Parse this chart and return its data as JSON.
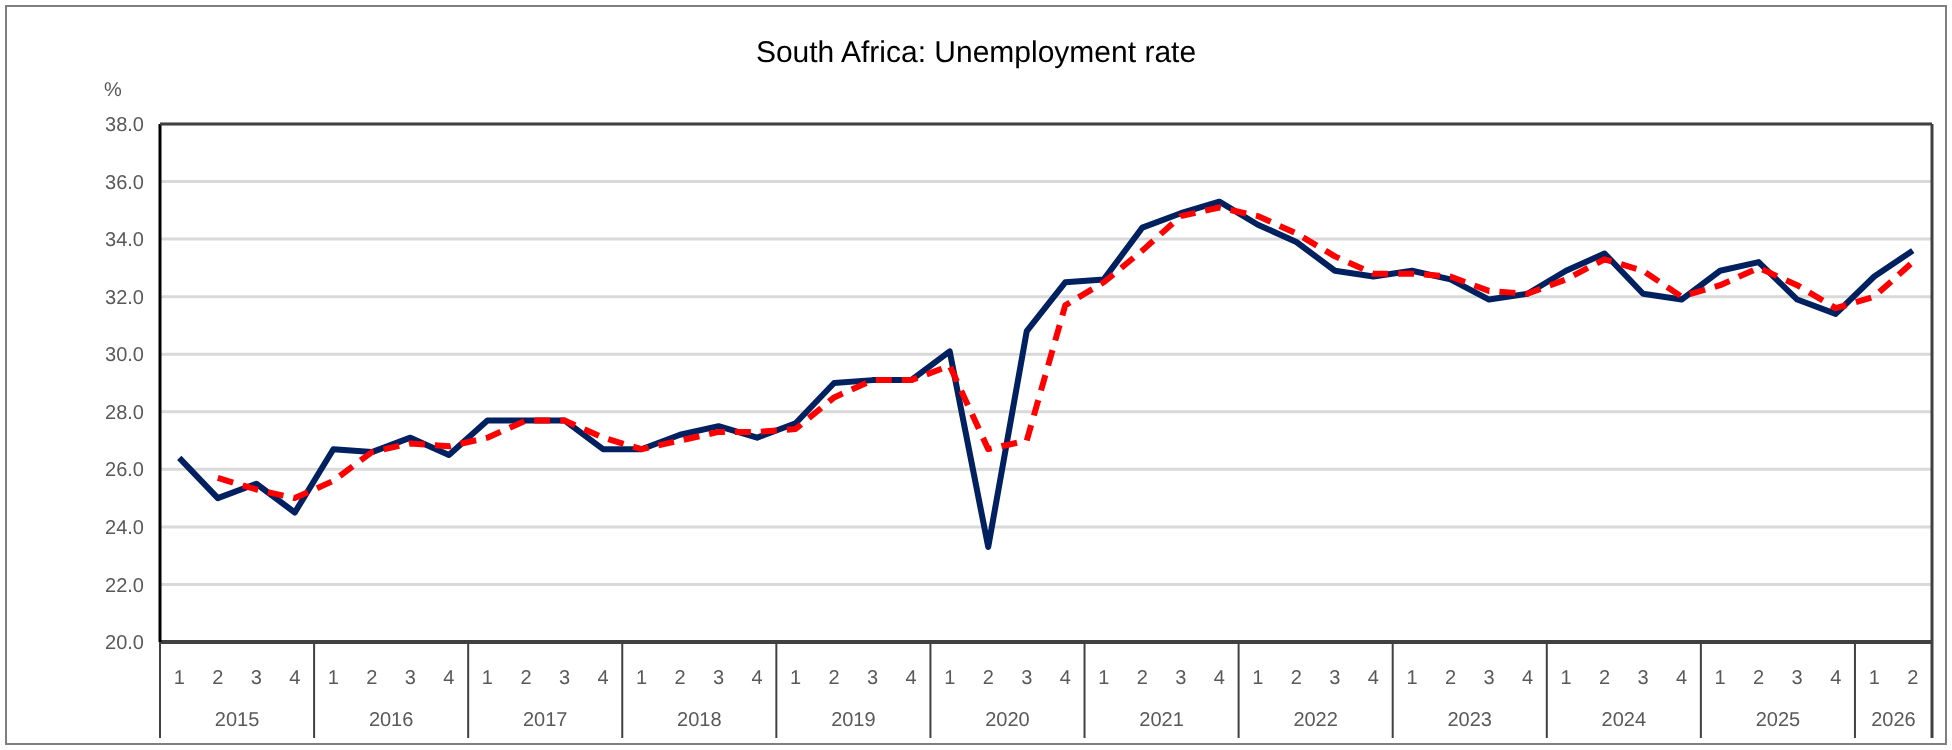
{
  "chart_data": {
    "type": "line",
    "title": "South Africa: Unemployment rate",
    "ylabel": "%",
    "categories": [
      "1",
      "2",
      "3",
      "4",
      "1",
      "2",
      "3",
      "4",
      "1",
      "2",
      "3",
      "4",
      "1",
      "2",
      "3",
      "4",
      "1",
      "2",
      "3",
      "4",
      "1",
      "2",
      "3",
      "4",
      "1",
      "2",
      "3",
      "4",
      "1",
      "2",
      "3",
      "4",
      "1",
      "2",
      "3",
      "4",
      "1",
      "2",
      "3",
      "4",
      "1",
      "2",
      "3",
      "4",
      "1",
      "2"
    ],
    "annotations": [
      "2015",
      "2016",
      "2017",
      "2018",
      "2019",
      "2020",
      "2021",
      "2022",
      "2023",
      "2024",
      "2025",
      "2026"
    ],
    "series": [
      {
        "color": "#002060",
        "line_style": "solid",
        "values": [
          26.4,
          25.0,
          25.5,
          24.5,
          26.7,
          26.6,
          27.1,
          26.5,
          27.7,
          27.7,
          27.7,
          26.7,
          26.7,
          27.2,
          27.5,
          27.1,
          27.6,
          29.0,
          29.1,
          29.1,
          30.1,
          23.3,
          30.8,
          32.5,
          32.6,
          34.4,
          34.9,
          35.3,
          34.5,
          33.9,
          32.9,
          32.7,
          32.9,
          32.6,
          31.9,
          32.1,
          32.9,
          33.5,
          32.1,
          31.9,
          32.9,
          33.2,
          31.9,
          31.4,
          32.7,
          33.6
        ]
      },
      {
        "color": "#ff0000",
        "line_style": "dashed",
        "values": [
          null,
          25.7,
          25.3,
          25.0,
          25.6,
          26.6,
          26.9,
          26.8,
          27.1,
          27.7,
          27.7,
          27.1,
          26.7,
          27.0,
          27.3,
          27.3,
          27.4,
          28.5,
          29.1,
          29.1,
          29.6,
          26.7,
          27.0,
          31.7,
          32.5,
          33.6,
          34.8,
          35.1,
          34.8,
          34.2,
          33.4,
          32.8,
          32.8,
          32.7,
          32.2,
          32.1,
          32.6,
          33.3,
          32.9,
          32.0,
          32.4,
          33.0,
          32.4,
          31.6,
          32.0,
          33.2
        ]
      }
    ],
    "ylim": [
      20,
      38
    ],
    "yticks": [
      {
        "value": 20,
        "label": "20.0"
      },
      {
        "value": 22,
        "label": "22.0"
      },
      {
        "value": 24,
        "label": "24.0"
      },
      {
        "value": 26,
        "label": "26.0"
      },
      {
        "value": 28,
        "label": "28.0"
      },
      {
        "value": 30,
        "label": "30.0"
      },
      {
        "value": 32,
        "label": "32.0"
      },
      {
        "value": 34,
        "label": "34.0"
      },
      {
        "value": 36,
        "label": "36.0"
      },
      {
        "value": 38,
        "label": "38.0"
      }
    ],
    "grid": "y",
    "legend": false,
    "marker": "none"
  }
}
